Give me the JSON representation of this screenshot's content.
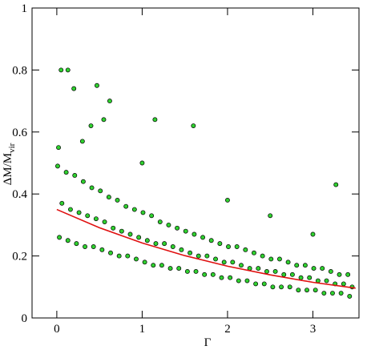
{
  "chart_data": {
    "type": "scatter",
    "xlabel": "Γ",
    "ylabel": "ΔM/M",
    "ylabel_sub": "vir",
    "xlim": [
      -0.29,
      3.54
    ],
    "ylim": [
      0,
      1
    ],
    "xticks": [
      0,
      1,
      2,
      3
    ],
    "yticks": [
      0,
      0.2,
      0.4,
      0.6,
      0.8,
      1
    ],
    "color": "#2fd12f",
    "x": [
      0.03,
      0.13,
      0.23,
      0.33,
      0.43,
      0.53,
      0.63,
      0.73,
      0.83,
      0.93,
      1.03,
      1.13,
      1.23,
      1.33,
      1.43,
      1.53,
      1.63,
      1.73,
      1.83,
      1.93,
      2.03,
      2.13,
      2.23,
      2.33,
      2.43,
      2.53,
      2.63,
      2.73,
      2.83,
      2.93,
      3.03,
      3.13,
      3.23,
      3.33,
      3.43,
      0.06,
      0.16,
      0.26,
      0.36,
      0.46,
      0.56,
      0.66,
      0.76,
      0.86,
      0.96,
      1.06,
      1.16,
      1.26,
      1.36,
      1.46,
      1.56,
      1.66,
      1.76,
      1.86,
      1.96,
      2.06,
      2.16,
      2.26,
      2.36,
      2.46,
      2.56,
      2.66,
      2.76,
      2.86,
      2.96,
      3.06,
      3.16,
      3.26,
      3.36,
      3.46,
      0.01,
      0.11,
      0.21,
      0.31,
      0.41,
      0.51,
      0.61,
      0.71,
      0.81,
      0.91,
      1.01,
      1.11,
      1.21,
      1.31,
      1.41,
      1.51,
      1.61,
      1.71,
      1.81,
      1.91,
      2.01,
      2.11,
      2.21,
      2.31,
      2.41,
      2.51,
      2.61,
      2.71,
      2.81,
      2.91,
      3.01,
      3.11,
      3.21,
      3.31,
      3.41,
      0.05,
      0.13,
      0.2,
      0.47,
      0.4,
      0.62,
      0.55,
      1.15,
      1.6,
      3.27,
      0.02,
      0.3,
      1.0,
      2.0,
      2.5,
      3.0
    ],
    "values": [
      0.26,
      0.25,
      0.24,
      0.23,
      0.23,
      0.22,
      0.21,
      0.2,
      0.2,
      0.19,
      0.18,
      0.17,
      0.17,
      0.16,
      0.16,
      0.15,
      0.15,
      0.14,
      0.14,
      0.13,
      0.13,
      0.12,
      0.12,
      0.11,
      0.11,
      0.1,
      0.1,
      0.1,
      0.09,
      0.09,
      0.09,
      0.08,
      0.08,
      0.08,
      0.07,
      0.37,
      0.35,
      0.34,
      0.33,
      0.32,
      0.31,
      0.29,
      0.28,
      0.27,
      0.26,
      0.25,
      0.24,
      0.24,
      0.23,
      0.22,
      0.21,
      0.2,
      0.2,
      0.19,
      0.18,
      0.18,
      0.17,
      0.16,
      0.16,
      0.15,
      0.15,
      0.14,
      0.14,
      0.13,
      0.13,
      0.12,
      0.12,
      0.11,
      0.11,
      0.1,
      0.49,
      0.47,
      0.46,
      0.44,
      0.42,
      0.41,
      0.39,
      0.38,
      0.36,
      0.35,
      0.34,
      0.33,
      0.31,
      0.3,
      0.29,
      0.28,
      0.27,
      0.26,
      0.25,
      0.24,
      0.23,
      0.23,
      0.22,
      0.21,
      0.2,
      0.19,
      0.19,
      0.18,
      0.17,
      0.17,
      0.16,
      0.16,
      0.15,
      0.14,
      0.14,
      0.8,
      0.8,
      0.74,
      0.75,
      0.62,
      0.7,
      0.64,
      0.64,
      0.62,
      0.43,
      0.55,
      0.57,
      0.5,
      0.38,
      0.33,
      0.27
    ],
    "curve": {
      "color": "#e01010",
      "x": [
        0,
        0.5,
        1,
        1.5,
        2,
        2.5,
        3,
        3.5
      ],
      "values": [
        0.35,
        0.291,
        0.242,
        0.201,
        0.167,
        0.139,
        0.115,
        0.096
      ]
    }
  }
}
